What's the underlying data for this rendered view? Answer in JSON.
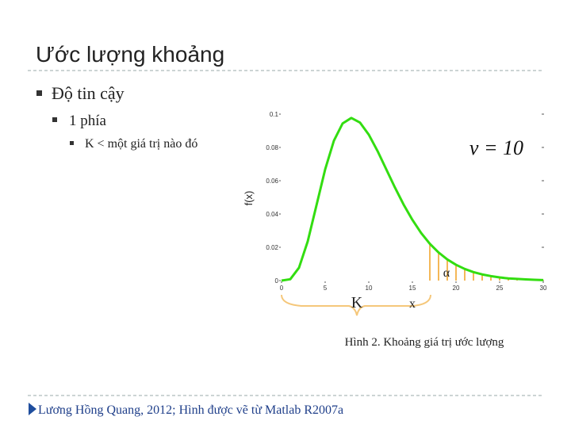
{
  "slide": {
    "title": "Ước lượng khoảng",
    "bullets": [
      "Độ tin cậy",
      "1 phía",
      "K < một giá trị nào đó"
    ],
    "caption": "Hình 2. Khoảng giá trị ước lượng",
    "footer": "Lương Hồng Quang, 2012; Hình được vẽ từ Matlab R2007a"
  },
  "chart_data": {
    "type": "line",
    "x": [
      0,
      1,
      2,
      3,
      4,
      5,
      6,
      7,
      8,
      9,
      10,
      11,
      12,
      13,
      14,
      15,
      16,
      17,
      18,
      19,
      20,
      21,
      22,
      23,
      24,
      25,
      26,
      27,
      28,
      29,
      30
    ],
    "values": [
      0,
      0.0008,
      0.0077,
      0.0235,
      0.0451,
      0.0668,
      0.084,
      0.0944,
      0.0977,
      0.0949,
      0.0877,
      0.0779,
      0.0669,
      0.0559,
      0.0456,
      0.0365,
      0.0286,
      0.0221,
      0.0169,
      0.0127,
      0.0095,
      0.007,
      0.0051,
      0.0037,
      0.0027,
      0.0019,
      0.0013,
      0.001,
      0.0007,
      0.0005,
      0.0003
    ],
    "color": "#33dd11",
    "xlim": [
      0,
      30
    ],
    "ylim": [
      0,
      0.1
    ],
    "xticks": [
      0,
      5,
      10,
      15,
      20,
      25,
      30
    ],
    "yticks": [
      0,
      0.02,
      0.04,
      0.06,
      0.08,
      0.1
    ],
    "ylabel": "f(x)",
    "annotation": "ν = 10",
    "labels": [
      "K",
      "x",
      "α"
    ],
    "shaded_from": 17,
    "shade_color": "#f0a020"
  }
}
